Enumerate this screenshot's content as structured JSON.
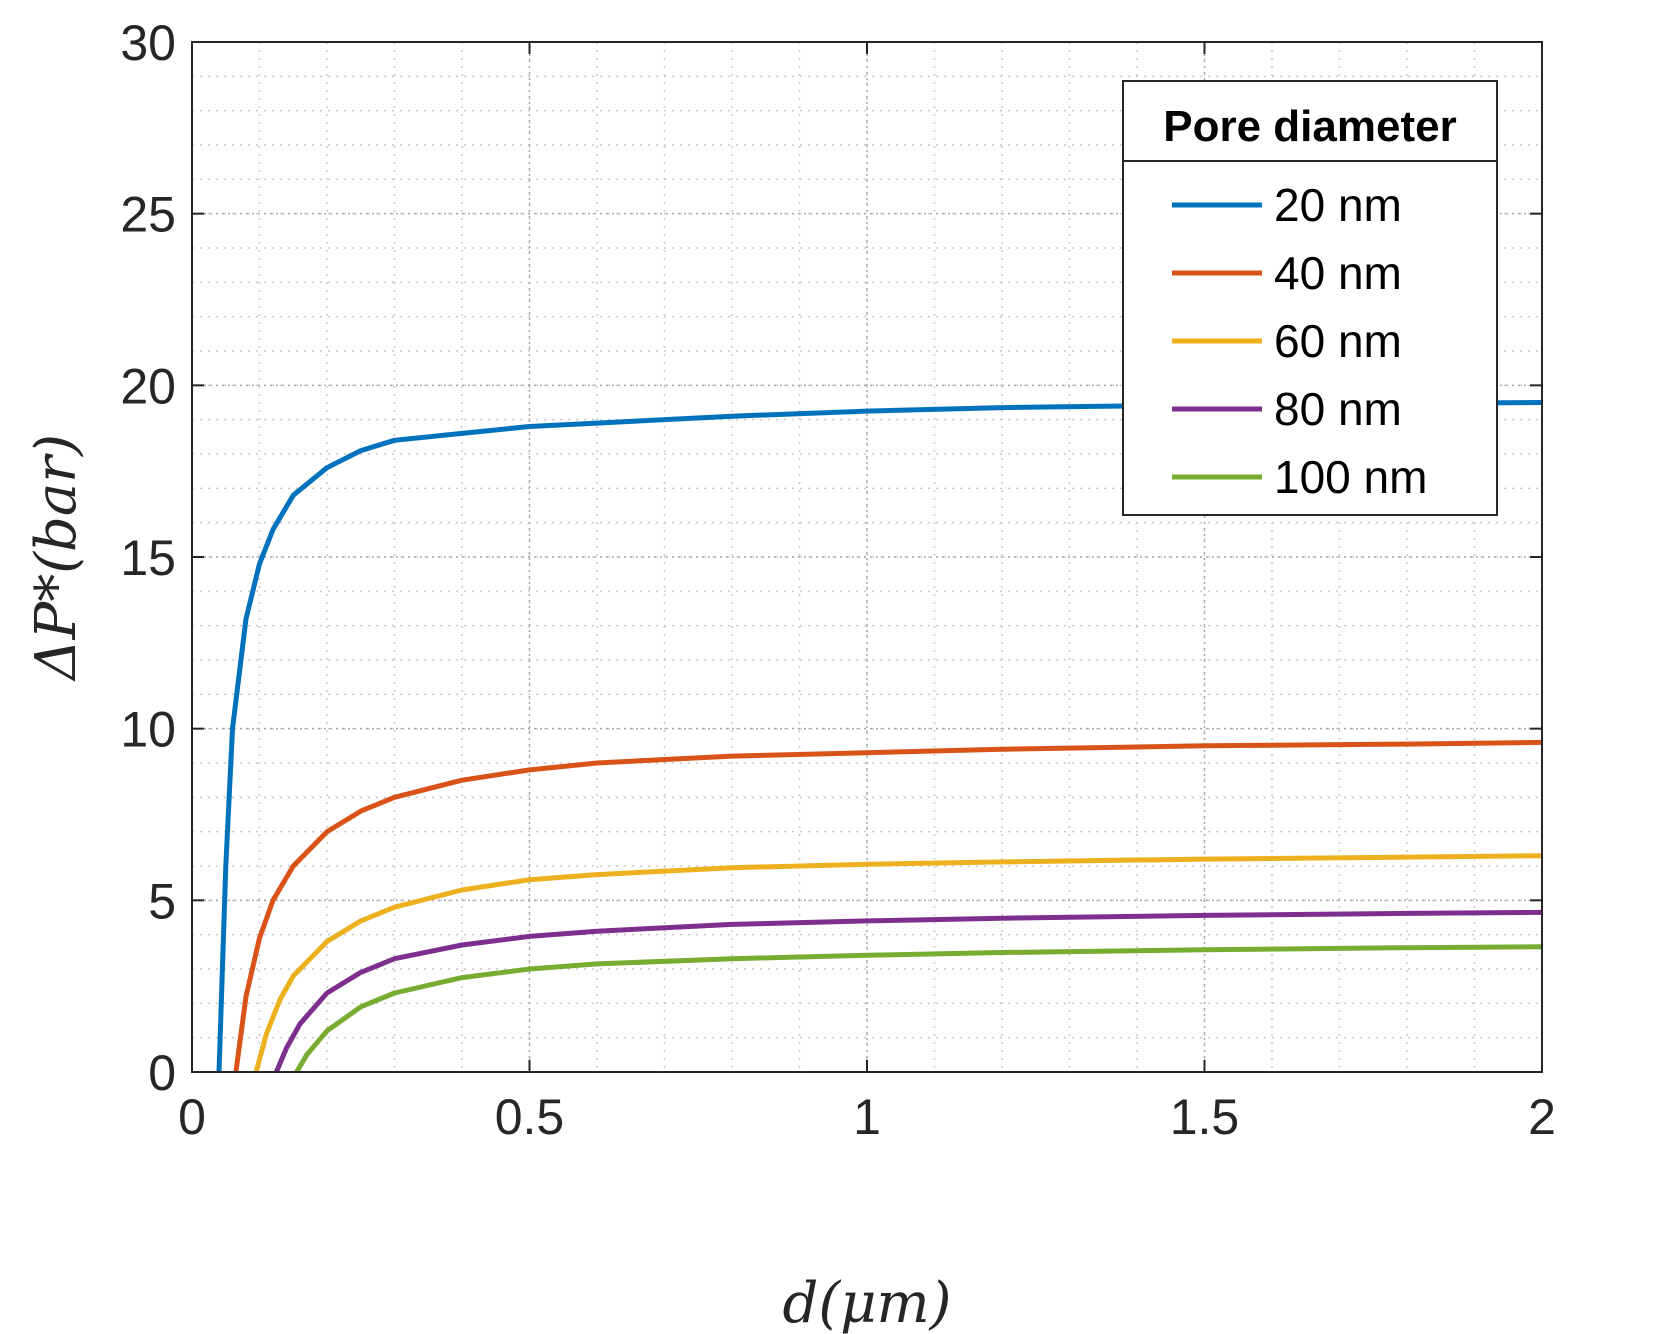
{
  "chart_data": {
    "type": "line",
    "title": "",
    "xlabel": "d(μm)",
    "ylabel": "ΔP*(bar)",
    "xlim": [
      0,
      2
    ],
    "ylim": [
      0,
      30
    ],
    "x_ticks": [
      0,
      0.5,
      1,
      1.5,
      2
    ],
    "x_tick_labels": [
      "0",
      "0.5",
      "1",
      "1.5",
      "2"
    ],
    "y_ticks": [
      0,
      5,
      10,
      15,
      20,
      25,
      30
    ],
    "y_tick_labels": [
      "0",
      "5",
      "10",
      "15",
      "20",
      "25",
      "30"
    ],
    "grid": true,
    "minor_grid": true,
    "legend": {
      "title": "Pore diameter",
      "position": "top-right"
    },
    "series": [
      {
        "name": "20 nm",
        "color": "#0072BD",
        "x": [
          0.04,
          0.05,
          0.06,
          0.08,
          0.1,
          0.12,
          0.15,
          0.2,
          0.25,
          0.3,
          0.4,
          0.5,
          0.6,
          0.8,
          1.0,
          1.2,
          1.5,
          1.8,
          2.0
        ],
        "y": [
          0,
          6.0,
          10.0,
          13.2,
          14.8,
          15.8,
          16.8,
          17.6,
          18.1,
          18.4,
          18.6,
          18.8,
          18.9,
          19.1,
          19.25,
          19.35,
          19.43,
          19.48,
          19.5
        ]
      },
      {
        "name": "40 nm",
        "color": "#D95319",
        "x": [
          0.065,
          0.08,
          0.1,
          0.12,
          0.15,
          0.2,
          0.25,
          0.3,
          0.4,
          0.5,
          0.6,
          0.8,
          1.0,
          1.2,
          1.5,
          1.8,
          2.0
        ],
        "y": [
          0,
          2.2,
          3.9,
          5.0,
          6.0,
          7.0,
          7.6,
          8.0,
          8.5,
          8.8,
          9.0,
          9.2,
          9.3,
          9.4,
          9.5,
          9.55,
          9.6
        ]
      },
      {
        "name": "60 nm",
        "color": "#EDB120",
        "x": [
          0.095,
          0.11,
          0.13,
          0.15,
          0.2,
          0.25,
          0.3,
          0.4,
          0.5,
          0.6,
          0.8,
          1.0,
          1.2,
          1.5,
          1.8,
          2.0
        ],
        "y": [
          0,
          1.1,
          2.1,
          2.8,
          3.8,
          4.4,
          4.8,
          5.3,
          5.6,
          5.75,
          5.95,
          6.05,
          6.12,
          6.2,
          6.26,
          6.3
        ]
      },
      {
        "name": "80 nm",
        "color": "#7E2F8E",
        "x": [
          0.125,
          0.14,
          0.16,
          0.2,
          0.25,
          0.3,
          0.4,
          0.5,
          0.6,
          0.8,
          1.0,
          1.2,
          1.5,
          1.8,
          2.0
        ],
        "y": [
          0,
          0.7,
          1.4,
          2.3,
          2.9,
          3.3,
          3.7,
          3.95,
          4.1,
          4.3,
          4.4,
          4.48,
          4.56,
          4.62,
          4.65
        ]
      },
      {
        "name": "100 nm",
        "color": "#77AC30",
        "x": [
          0.155,
          0.17,
          0.2,
          0.25,
          0.3,
          0.4,
          0.5,
          0.6,
          0.8,
          1.0,
          1.2,
          1.5,
          1.8,
          2.0
        ],
        "y": [
          0,
          0.5,
          1.2,
          1.9,
          2.3,
          2.75,
          3.0,
          3.15,
          3.3,
          3.4,
          3.48,
          3.56,
          3.62,
          3.65
        ]
      }
    ]
  }
}
